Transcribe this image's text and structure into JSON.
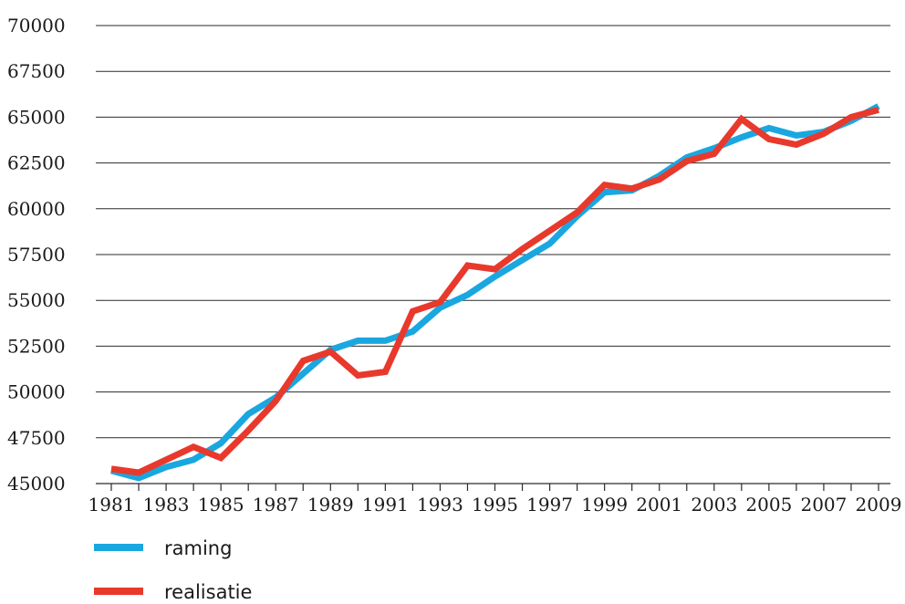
{
  "chart_data": {
    "type": "line",
    "title": "",
    "xlabel": "",
    "ylabel": "",
    "ylim": [
      45000,
      70000
    ],
    "yticks": [
      45000,
      47500,
      50000,
      52500,
      55000,
      57500,
      60000,
      62500,
      65000,
      67500,
      70000
    ],
    "ytick_labels": [
      "45000",
      "47500",
      "50000",
      "52500",
      "55000",
      "57500",
      "60000",
      "62500",
      "65000",
      "67500",
      "70000"
    ],
    "xlim": [
      1981,
      2009
    ],
    "xticks": [
      1981,
      1983,
      1985,
      1987,
      1989,
      1991,
      1993,
      1995,
      1997,
      1999,
      2001,
      2003,
      2005,
      2007,
      2009
    ],
    "xtick_labels": [
      "1981",
      "1983",
      "1985",
      "1987",
      "1989",
      "1991",
      "1993",
      "1995",
      "1997",
      "1999",
      "2001",
      "2003",
      "2005",
      "2007",
      "2009"
    ],
    "grid": "horizontal",
    "legend_position": "bottom-left",
    "x": [
      1981,
      1982,
      1983,
      1984,
      1985,
      1986,
      1987,
      1988,
      1989,
      1990,
      1991,
      1992,
      1993,
      1994,
      1995,
      1996,
      1997,
      1998,
      1999,
      2000,
      2001,
      2002,
      2003,
      2004,
      2005,
      2006,
      2007,
      2008,
      2009
    ],
    "series": [
      {
        "name": "raming",
        "color": "#1aa7e0",
        "values": [
          45700,
          45300,
          45900,
          46300,
          47200,
          48800,
          49700,
          51000,
          52300,
          52800,
          52800,
          53300,
          54600,
          55300,
          56300,
          57200,
          58100,
          59600,
          60900,
          61000,
          61800,
          62800,
          63300,
          63900,
          64400,
          64000,
          64200,
          64800,
          65600
        ]
      },
      {
        "name": "realisatie",
        "color": "#e8392c",
        "values": [
          45800,
          45600,
          46300,
          47000,
          46400,
          47900,
          49500,
          51700,
          52200,
          50900,
          51100,
          54400,
          54900,
          56900,
          56700,
          57800,
          58800,
          59800,
          61300,
          61100,
          61600,
          62600,
          63000,
          64900,
          63800,
          63500,
          64100,
          65000,
          65400
        ]
      }
    ]
  }
}
